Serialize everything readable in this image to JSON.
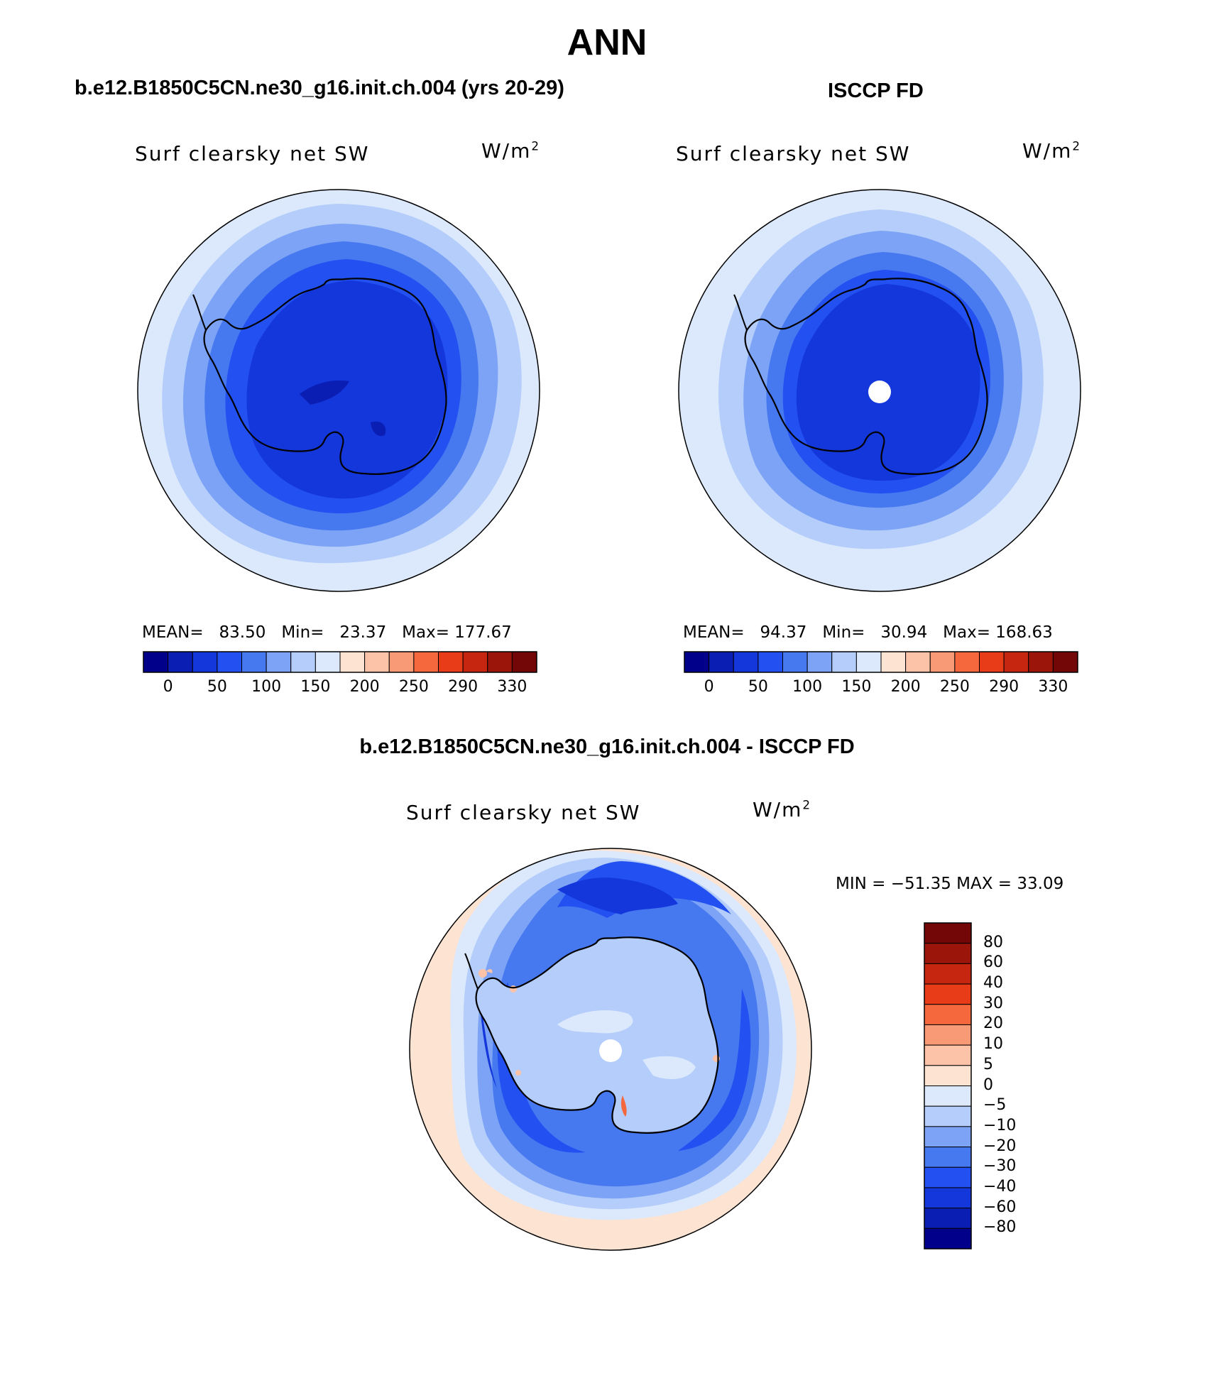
{
  "title": "ANN",
  "panels": [
    {
      "id": "model",
      "title": "b.e12.B1850C5CN.ne30_g16.init.ch.004 (yrs 20-29)",
      "variable": "Surf clearsky net SW",
      "units": "W/m",
      "units_exp": "2",
      "stats": {
        "mean_label": "MEAN=",
        "mean": "83.50",
        "min_label": "Min=",
        "min": "23.37",
        "max_label": "Max=",
        "max": "177.67"
      },
      "colorbar_ticks": [
        "0",
        "50",
        "100",
        "150",
        "200",
        "250",
        "290",
        "330"
      ]
    },
    {
      "id": "obs",
      "title": "ISCCP FD",
      "variable": "Surf clearsky net SW",
      "units": "W/m",
      "units_exp": "2",
      "stats": {
        "mean_label": "MEAN=",
        "mean": "94.37",
        "min_label": "Min=",
        "min": "30.94",
        "max_label": "Max=",
        "max": "168.63"
      },
      "colorbar_ticks": [
        "0",
        "50",
        "100",
        "150",
        "200",
        "250",
        "290",
        "330"
      ]
    },
    {
      "id": "diff",
      "title": "b.e12.B1850C5CN.ne30_g16.init.ch.004 - ISCCP FD",
      "variable": "Surf clearsky net SW",
      "units": "W/m",
      "units_exp": "2",
      "stats_text": "MIN = −51.35 MAX =   33.09",
      "colorbar_ticks": [
        "80",
        "60",
        "40",
        "30",
        "20",
        "10",
        "5",
        "0",
        "−5",
        "−10",
        "−20",
        "−30",
        "−40",
        "−60",
        "−80"
      ]
    }
  ],
  "colors": {
    "abs_scale": [
      "#00008b",
      "#0a1eb4",
      "#1437dc",
      "#2350f0",
      "#4678f0",
      "#7ca3f5",
      "#b4cdfa",
      "#dce9fc",
      "#fde3d2",
      "#fcc3a8",
      "#f99a76",
      "#f5683e",
      "#e73c17",
      "#c62510",
      "#9c150b",
      "#730606"
    ],
    "diff_scale": [
      "#00008b",
      "#0a1eb4",
      "#1437dc",
      "#2350f0",
      "#4678f0",
      "#7ca3f5",
      "#b4cdfa",
      "#dce9fc",
      "#fde3d2",
      "#fcc3a8",
      "#f99a76",
      "#f5683e",
      "#e73c17",
      "#c62510",
      "#9c150b",
      "#730606"
    ]
  }
}
